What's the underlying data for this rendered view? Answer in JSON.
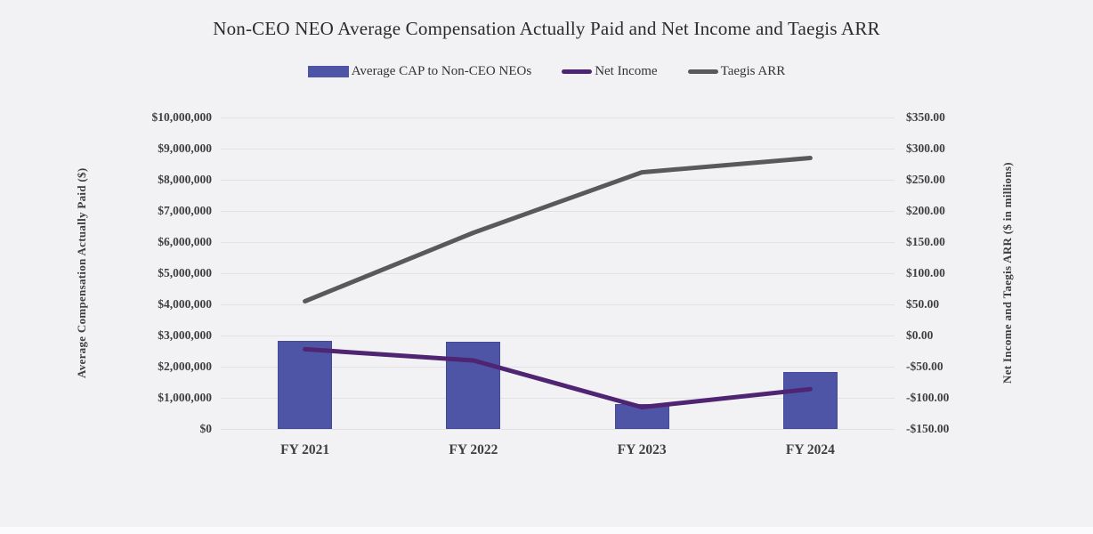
{
  "page": {
    "background": "#f2f2f4"
  },
  "chart_data": {
    "type": "combo-bar-line",
    "title": "Non-CEO NEO Average Compensation Actually Paid and Net Income and Taegis ARR",
    "categories": [
      "FY 2021",
      "FY 2022",
      "FY 2023",
      "FY 2024"
    ],
    "series": [
      {
        "name": "Average CAP to Non-CEO NEOs",
        "type": "bar",
        "axis": "left",
        "color": "#4f55a6",
        "values": [
          2830000,
          2800000,
          800000,
          1840000
        ]
      },
      {
        "name": "Net Income",
        "type": "line",
        "axis": "right",
        "color": "#4e2473",
        "values": [
          -22,
          -40,
          -115,
          -86
        ]
      },
      {
        "name": "Taegis ARR",
        "type": "line",
        "axis": "right",
        "color": "#595959",
        "values": [
          55,
          165,
          262,
          285
        ]
      }
    ],
    "left_axis": {
      "title": "Average Compensation Actually Paid ($)",
      "min": 0,
      "max": 10000000,
      "ticks": [
        "$10,000,000",
        "$9,000,000",
        "$8,000,000",
        "$7,000,000",
        "$6,000,000",
        "$5,000,000",
        "$4,000,000",
        "$3,000,000",
        "$2,000,000",
        "$1,000,000",
        "$0"
      ]
    },
    "right_axis": {
      "title": "Net Income and Taegis ARR ($ in millions)",
      "min": -150,
      "max": 350,
      "ticks": [
        "$350.00",
        "$300.00",
        "$250.00",
        "$200.00",
        "$150.00",
        "$100.00",
        "$50.00",
        "$0.00",
        "-$50.00",
        "-$100.00",
        "-$150.00"
      ]
    },
    "grid": true,
    "legend_position": "top"
  }
}
